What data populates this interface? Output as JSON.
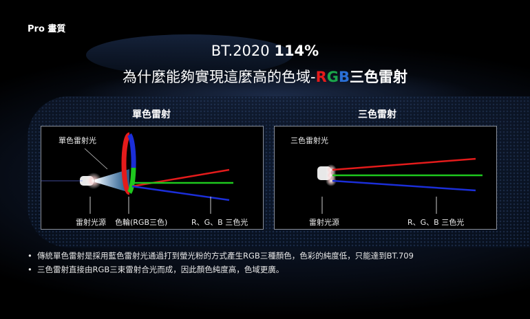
{
  "brand": "Pro 畫質",
  "headline": {
    "prefix": "BT.2020 ",
    "value": "114%"
  },
  "subheadline": {
    "text": "為什麼能夠實現這麼高的色域-",
    "r": "R",
    "g": "G",
    "b": "B",
    "suffix": "三色雷射"
  },
  "panels": [
    {
      "title": "單色雷射",
      "beam_label": "單色雷射光",
      "labels": [
        "雷射光源",
        "色輪(RGB三色)",
        "R、G、B 三色光"
      ]
    },
    {
      "title": "三色雷射",
      "beam_label": "三色雷射光",
      "labels": [
        "雷射光源",
        "R、G、B 三色光"
      ]
    }
  ],
  "bullets": [
    "傳統單色雷射是採用藍色雷射光通過打到螢光粉的方式產生RGB三種顏色，色彩的純度低，只能達到BT.709",
    "三色雷射直接由RGB三束雷射合光而成，因此顏色純度高，色域更廣。"
  ],
  "colors": {
    "red": "#e41b1b",
    "green": "#1aa64a",
    "blue": "#2a6fd6"
  }
}
